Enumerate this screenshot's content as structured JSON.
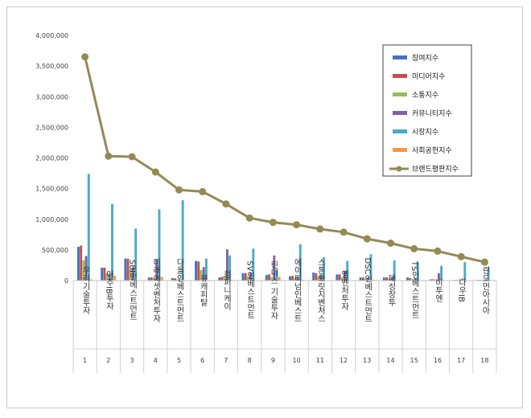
{
  "chart_data": {
    "type": "bar",
    "title": "",
    "xlabel": "",
    "ylabel": "",
    "ylim": [
      0,
      4000000
    ],
    "y_ticks": [
      "0",
      "500,000",
      "1,000,000",
      "1,500,000",
      "2,000,000",
      "2,500,000",
      "3,000,000",
      "3,500,000",
      "4,000,000"
    ],
    "y_tick_values": [
      0,
      500000,
      1000000,
      1500000,
      2000000,
      2500000,
      3000000,
      3500000,
      4000000
    ],
    "grid": false,
    "legend_position": "top-right",
    "categories": [
      "우리기술투자",
      "아주IB투자",
      "SBI인베스트먼트",
      "미래에셋벤처투자",
      "다올인베스트먼트",
      "큐캐피탈",
      "컴퍼니케이",
      "SV인베스트먼트",
      "린더스 기술투자",
      "에이티넘인베스트",
      "스톤브릿지벤처스",
      "엠벤처투자",
      "DSC인베스트먼트",
      "대성창투",
      "TS인베스트먼트",
      "비투엔",
      "나우IB",
      "린드먼아시아"
    ],
    "ranks": [
      "1",
      "2",
      "3",
      "4",
      "5",
      "6",
      "7",
      "8",
      "9",
      "10",
      "11",
      "12",
      "13",
      "14",
      "15",
      "16",
      "17",
      "18"
    ],
    "series": [
      {
        "name": "참여지수",
        "color": "#4472c4",
        "values": [
          550000,
          210000,
          360000,
          50000,
          40000,
          320000,
          50000,
          120000,
          90000,
          70000,
          130000,
          100000,
          50000,
          50000,
          50000,
          20000,
          10000,
          10000
        ]
      },
      {
        "name": "미디어지수",
        "color": "#c0504d",
        "values": [
          570000,
          210000,
          355000,
          50000,
          35000,
          310000,
          60000,
          120000,
          100000,
          75000,
          120000,
          100000,
          50000,
          50000,
          40000,
          20000,
          10000,
          10000
        ]
      },
      {
        "name": "소통지수",
        "color": "#9bbb59",
        "values": [
          330000,
          120000,
          180000,
          35000,
          20000,
          170000,
          80000,
          70000,
          60000,
          40000,
          70000,
          50000,
          30000,
          30000,
          20000,
          10000,
          10000,
          10000
        ]
      },
      {
        "name": "커뮤니티지수",
        "color": "#8064a2",
        "values": [
          400000,
          110000,
          210000,
          350000,
          20000,
          220000,
          510000,
          130000,
          410000,
          70000,
          100000,
          160000,
          50000,
          60000,
          40000,
          120000,
          30000,
          20000
        ]
      },
      {
        "name": "시장지수",
        "color": "#4bacc6",
        "values": [
          1740000,
          1250000,
          850000,
          1160000,
          1310000,
          360000,
          410000,
          520000,
          180000,
          590000,
          380000,
          320000,
          430000,
          330000,
          300000,
          240000,
          300000,
          220000
        ]
      },
      {
        "name": "사회공헌지수",
        "color": "#f79646",
        "values": [
          20000,
          80000,
          10000,
          60000,
          5000,
          10000,
          10000,
          5000,
          60000,
          10000,
          5000,
          5000,
          10000,
          5000,
          5000,
          5000,
          5000,
          5000
        ]
      }
    ],
    "line_series": {
      "name": "브랜드평판지수",
      "color": "#948a54",
      "values": [
        3650000,
        2030000,
        2020000,
        1770000,
        1480000,
        1450000,
        1250000,
        1020000,
        950000,
        910000,
        840000,
        790000,
        680000,
        610000,
        520000,
        480000,
        390000,
        300000
      ]
    }
  }
}
